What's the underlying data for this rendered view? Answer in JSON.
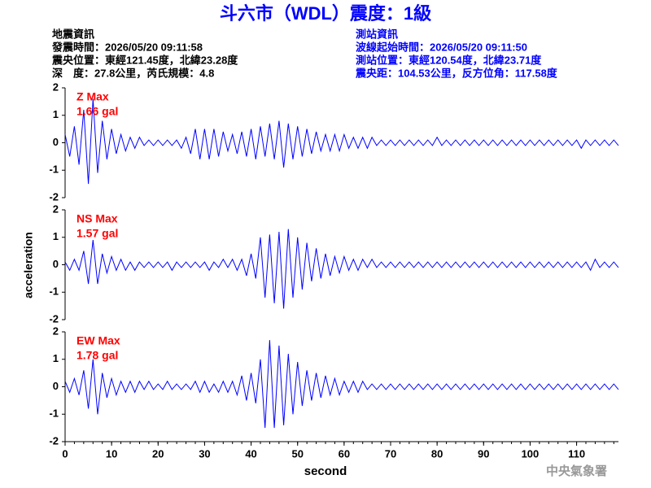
{
  "title": "斗六市（WDL）震度：1級",
  "earthquake_info": [
    "地震資訊",
    "發震時間：2026/05/20 09:11:58",
    "震央位置：東經121.45度，北緯23.28度",
    "深　度：27.8公里，芮氏規模：4.8"
  ],
  "station_info": [
    "測站資訊",
    "波線起始時間：2026/05/20 09:11:50",
    "測站位置：東經120.54度，北緯23.71度",
    "震央距：104.53公里，反方位角：117.58度"
  ],
  "ylabel": "acceleration",
  "xlabel": "second",
  "footer": "中央氣象署",
  "chart_data": [
    {
      "type": "line",
      "annotation": [
        "Z Max",
        "1.66 gal"
      ],
      "color": "#0000ff",
      "xlim": [
        0,
        119
      ],
      "ylim": [
        -2,
        2
      ],
      "yticks": [
        -2,
        -1,
        0,
        1,
        2
      ],
      "x": [
        0,
        1,
        2,
        3,
        4,
        5,
        6,
        7,
        8,
        9,
        10,
        11,
        12,
        13,
        14,
        15,
        16,
        17,
        18,
        19,
        20,
        21,
        22,
        23,
        24,
        25,
        26,
        27,
        28,
        29,
        30,
        31,
        32,
        33,
        34,
        35,
        36,
        37,
        38,
        39,
        40,
        41,
        42,
        43,
        44,
        45,
        46,
        47,
        48,
        49,
        50,
        51,
        52,
        53,
        54,
        55,
        56,
        57,
        58,
        59,
        60,
        61,
        62,
        63,
        64,
        65,
        66,
        67,
        68,
        69,
        70,
        71,
        72,
        73,
        74,
        75,
        76,
        77,
        78,
        79,
        80,
        81,
        82,
        83,
        84,
        85,
        86,
        87,
        88,
        89,
        90,
        91,
        92,
        93,
        94,
        95,
        96,
        97,
        98,
        99,
        100,
        101,
        102,
        103,
        104,
        105,
        106,
        107,
        108,
        109,
        110,
        111,
        112,
        113,
        114,
        115,
        116,
        117,
        118,
        119
      ],
      "values": [
        0.3,
        -0.5,
        0.6,
        -0.8,
        1.2,
        -1.5,
        1.6,
        -1.1,
        0.8,
        -0.6,
        0.5,
        -0.4,
        0.3,
        -0.3,
        0.2,
        -0.2,
        0.2,
        -0.1,
        0.1,
        -0.1,
        0.1,
        -0.1,
        0.1,
        -0.1,
        0.1,
        -0.2,
        0.2,
        -0.4,
        0.5,
        -0.6,
        0.5,
        -0.6,
        0.5,
        -0.5,
        0.4,
        -0.3,
        0.3,
        -0.4,
        0.4,
        -0.5,
        0.5,
        -0.6,
        0.6,
        -0.5,
        0.7,
        -0.6,
        0.8,
        -0.9,
        0.7,
        -0.6,
        0.6,
        -0.5,
        0.5,
        -0.4,
        0.4,
        -0.3,
        0.3,
        -0.3,
        0.3,
        -0.3,
        0.3,
        -0.2,
        0.2,
        -0.2,
        0.2,
        -0.2,
        0.2,
        -0.1,
        0.1,
        -0.1,
        0.1,
        -0.1,
        0.1,
        -0.1,
        0.1,
        -0.1,
        0.1,
        -0.1,
        0.1,
        -0.1,
        0.2,
        -0.1,
        0.1,
        -0.1,
        0.1,
        -0.1,
        0.1,
        -0.1,
        0.1,
        -0.1,
        0.1,
        -0.1,
        0.1,
        -0.1,
        0.1,
        -0.1,
        0.1,
        -0.1,
        0.1,
        -0.1,
        0.1,
        -0.1,
        0.1,
        -0.1,
        0.1,
        -0.1,
        0.1,
        -0.1,
        0.1,
        -0.1,
        0.1,
        -0.2,
        0.1,
        -0.1,
        0.1,
        -0.1,
        0.1,
        -0.1,
        0.1,
        -0.1
      ]
    },
    {
      "type": "line",
      "annotation": [
        "NS Max",
        "1.57 gal"
      ],
      "color": "#0000ff",
      "xlim": [
        0,
        119
      ],
      "ylim": [
        -2,
        2
      ],
      "yticks": [
        -2,
        -1,
        0,
        1,
        2
      ],
      "x": [
        0,
        1,
        2,
        3,
        4,
        5,
        6,
        7,
        8,
        9,
        10,
        11,
        12,
        13,
        14,
        15,
        16,
        17,
        18,
        19,
        20,
        21,
        22,
        23,
        24,
        25,
        26,
        27,
        28,
        29,
        30,
        31,
        32,
        33,
        34,
        35,
        36,
        37,
        38,
        39,
        40,
        41,
        42,
        43,
        44,
        45,
        46,
        47,
        48,
        49,
        50,
        51,
        52,
        53,
        54,
        55,
        56,
        57,
        58,
        59,
        60,
        61,
        62,
        63,
        64,
        65,
        66,
        67,
        68,
        69,
        70,
        71,
        72,
        73,
        74,
        75,
        76,
        77,
        78,
        79,
        80,
        81,
        82,
        83,
        84,
        85,
        86,
        87,
        88,
        89,
        90,
        91,
        92,
        93,
        94,
        95,
        96,
        97,
        98,
        99,
        100,
        101,
        102,
        103,
        104,
        105,
        106,
        107,
        108,
        109,
        110,
        111,
        112,
        113,
        114,
        115,
        116,
        117,
        118,
        119
      ],
      "values": [
        0.1,
        -0.2,
        0.2,
        -0.2,
        0.5,
        -0.7,
        0.9,
        -0.7,
        0.4,
        -0.3,
        0.3,
        -0.2,
        0.2,
        -0.2,
        0.1,
        -0.2,
        0.1,
        -0.1,
        0.1,
        -0.1,
        0.1,
        -0.1,
        0.1,
        -0.2,
        0.1,
        -0.1,
        0.1,
        -0.1,
        0.1,
        -0.1,
        0.1,
        -0.2,
        0.1,
        -0.1,
        0.2,
        -0.1,
        0.2,
        -0.2,
        0.2,
        -0.4,
        0.4,
        -0.5,
        1.0,
        -1.2,
        1.1,
        -1.4,
        1.2,
        -1.6,
        1.3,
        -1.2,
        1.0,
        -0.9,
        0.8,
        -0.6,
        0.6,
        -0.5,
        0.4,
        -0.4,
        0.3,
        -0.3,
        0.3,
        -0.2,
        0.2,
        -0.2,
        0.2,
        -0.1,
        0.2,
        -0.1,
        0.1,
        -0.1,
        0.1,
        -0.1,
        0.1,
        -0.1,
        0.1,
        -0.1,
        0.1,
        -0.1,
        0.1,
        -0.1,
        0.1,
        -0.1,
        0.1,
        -0.1,
        0.1,
        -0.1,
        0.1,
        -0.1,
        0.1,
        -0.1,
        0.1,
        -0.1,
        0.1,
        -0.1,
        0.1,
        -0.1,
        0.1,
        -0.1,
        0.1,
        -0.1,
        0.1,
        -0.1,
        0.1,
        -0.1,
        0.1,
        -0.1,
        0.1,
        -0.1,
        0.1,
        -0.1,
        0.1,
        -0.1,
        0.1,
        -0.2,
        0.2,
        -0.1,
        0.1,
        -0.1,
        0.1,
        -0.1
      ]
    },
    {
      "type": "line",
      "annotation": [
        "EW Max",
        "1.78 gal"
      ],
      "color": "#0000ff",
      "xlim": [
        0,
        119
      ],
      "ylim": [
        -2,
        2
      ],
      "yticks": [
        -2,
        -1,
        0,
        1,
        2
      ],
      "xticks": [
        0,
        10,
        20,
        30,
        40,
        50,
        60,
        70,
        80,
        90,
        100,
        110
      ],
      "x": [
        0,
        1,
        2,
        3,
        4,
        5,
        6,
        7,
        8,
        9,
        10,
        11,
        12,
        13,
        14,
        15,
        16,
        17,
        18,
        19,
        20,
        21,
        22,
        23,
        24,
        25,
        26,
        27,
        28,
        29,
        30,
        31,
        32,
        33,
        34,
        35,
        36,
        37,
        38,
        39,
        40,
        41,
        42,
        43,
        44,
        45,
        46,
        47,
        48,
        49,
        50,
        51,
        52,
        53,
        54,
        55,
        56,
        57,
        58,
        59,
        60,
        61,
        62,
        63,
        64,
        65,
        66,
        67,
        68,
        69,
        70,
        71,
        72,
        73,
        74,
        75,
        76,
        77,
        78,
        79,
        80,
        81,
        82,
        83,
        84,
        85,
        86,
        87,
        88,
        89,
        90,
        91,
        92,
        93,
        94,
        95,
        96,
        97,
        98,
        99,
        100,
        101,
        102,
        103,
        104,
        105,
        106,
        107,
        108,
        109,
        110,
        111,
        112,
        113,
        114,
        115,
        116,
        117,
        118,
        119
      ],
      "values": [
        0.2,
        -0.2,
        0.3,
        -0.3,
        0.6,
        -0.8,
        1.0,
        -1.0,
        0.5,
        -0.4,
        0.3,
        -0.3,
        0.2,
        -0.2,
        0.2,
        -0.2,
        0.2,
        -0.1,
        0.2,
        -0.1,
        0.1,
        -0.1,
        0.2,
        -0.1,
        0.1,
        -0.1,
        0.1,
        -0.1,
        0.2,
        -0.2,
        0.2,
        -0.2,
        0.1,
        -0.2,
        0.2,
        -0.2,
        0.2,
        -0.3,
        0.4,
        -0.5,
        0.5,
        -0.6,
        1.0,
        -1.5,
        1.7,
        -1.5,
        1.5,
        -1.4,
        1.2,
        -1.0,
        0.9,
        -0.7,
        0.6,
        -0.5,
        0.5,
        -0.4,
        0.4,
        -0.3,
        0.3,
        -0.3,
        0.2,
        -0.2,
        0.2,
        -0.2,
        0.2,
        -0.1,
        0.1,
        -0.1,
        0.1,
        -0.1,
        0.1,
        -0.1,
        0.1,
        -0.1,
        0.1,
        -0.1,
        0.1,
        -0.1,
        0.1,
        -0.1,
        0.1,
        -0.1,
        0.1,
        -0.1,
        0.1,
        -0.1,
        0.1,
        -0.1,
        0.1,
        -0.1,
        0.1,
        -0.1,
        0.1,
        -0.1,
        0.1,
        -0.1,
        0.1,
        -0.1,
        0.1,
        -0.1,
        0.1,
        -0.1,
        0.1,
        -0.1,
        0.1,
        -0.1,
        0.1,
        -0.1,
        0.1,
        -0.1,
        0.1,
        -0.1,
        0.1,
        -0.1,
        0.1,
        -0.1,
        0.1,
        -0.1,
        0.1,
        -0.1
      ]
    }
  ]
}
